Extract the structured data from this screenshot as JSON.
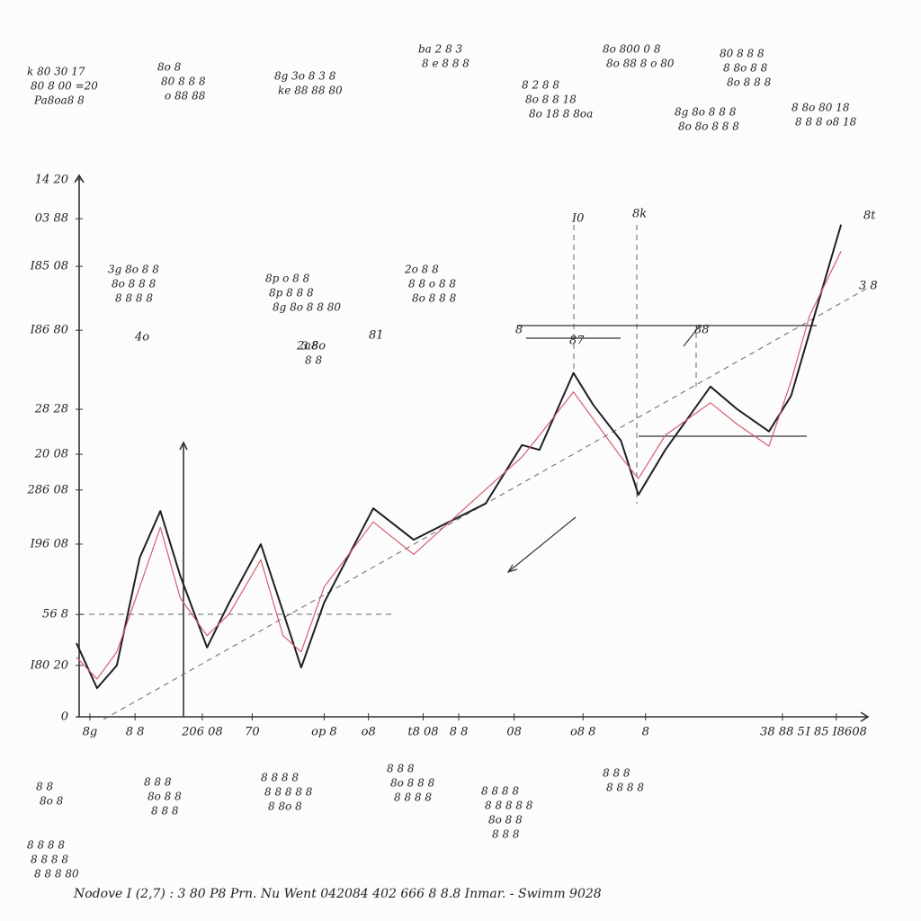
{
  "chart_data": {
    "type": "line",
    "xlim": [
      0,
      100
    ],
    "ylim": [
      0,
      100
    ],
    "x": [
      0,
      2.6,
      5.1,
      8,
      10.6,
      13.1,
      16.5,
      19.3,
      23.3,
      26.1,
      28.4,
      31.3,
      37.5,
      42.6,
      51.7,
      56.3,
      58.5,
      62.8,
      65.3,
      68.8,
      71,
      74.4,
      80.1,
      83.5,
      87.5,
      90.3,
      92.6,
      96.6
    ],
    "series": [
      {
        "color": "#1f1f24",
        "values": [
          13.6,
          5.3,
          9.5,
          29.4,
          38,
          26.1,
          12.8,
          21.1,
          31.9,
          19.4,
          9.1,
          21.1,
          38.5,
          32.7,
          39.4,
          50.2,
          49.3,
          63.5,
          57.6,
          51,
          41,
          49.3,
          61,
          56.8,
          52.7,
          59.3,
          70.9,
          90.9
        ]
      },
      {
        "color": "#d4606e",
        "values": [
          11,
          7,
          12,
          24,
          35,
          22,
          15,
          19,
          29,
          15,
          12,
          24,
          36,
          30,
          42,
          48,
          52,
          60,
          55,
          48,
          44,
          52,
          58,
          54,
          50,
          62,
          74,
          86
        ]
      }
    ],
    "xticks": [
      {
        "value": 1.7,
        "label": "8g"
      },
      {
        "value": 7.4,
        "label": "8 8"
      },
      {
        "value": 15.9,
        "label": "206 08"
      },
      {
        "value": 22.2,
        "label": "70"
      },
      {
        "value": 31.3,
        "label": "op 8"
      },
      {
        "value": 36.9,
        "label": "o8"
      },
      {
        "value": 43.8,
        "label": "t8 08"
      },
      {
        "value": 48.3,
        "label": "8 8"
      },
      {
        "value": 55.3,
        "label": "08"
      },
      {
        "value": 64,
        "label": "o8 8"
      },
      {
        "value": 71.9,
        "label": "8"
      },
      {
        "value": 89.2,
        "label": "38 88 5"
      },
      {
        "value": 96,
        "label": "I 85 I8608"
      }
    ],
    "yticks": [
      0,
      {
        "value": 9.5,
        "label": "I80 20"
      },
      {
        "value": 18.9,
        "label": "56 8"
      },
      {
        "value": 31.9,
        "label": "I96 08"
      },
      {
        "value": 41.9,
        "label": "286 08"
      },
      {
        "value": 48.5,
        "label": "20 08"
      },
      {
        "value": 56.8,
        "label": "28 28"
      },
      {
        "value": 71.4,
        "label": "I86 80"
      },
      {
        "value": 83.2,
        "label": "I85 08"
      },
      {
        "value": 92,
        "label": "03 88"
      },
      {
        "value": 99.2,
        "label": "14 20"
      }
    ],
    "notes": [
      [
        "k 80 30 17",
        "80 8 00 =20",
        "Pa8oa8 8"
      ],
      [
        "8o 8",
        "80 8 8 8",
        "o 88 88"
      ],
      [
        "8g 3o 8 3 8",
        "ke 88 88 80"
      ],
      [
        "ba 2 8 3",
        "8 e 8 8 8"
      ],
      [
        "8 2 8 8",
        "8o 8 8 18",
        "8o 18 8 8oa"
      ],
      [
        "8o 800 0 8",
        "8o 88 8 o 80"
      ],
      [
        "80 8 8 8",
        "8 8o 8 8",
        "8o 8 8 8"
      ],
      [
        "8g 8o 8 8 8",
        "8o 8o 8 8 8"
      ],
      [
        "8 8o 80 18",
        "8 8 8 o8 18"
      ],
      [
        "3g 8o 8 8",
        "8o 8 8 8",
        "8 8 8 8"
      ],
      [
        "8p o 8 8",
        "8p 8 8 8",
        "8g 8o 8 8 80"
      ],
      [
        "2o 8 8",
        "8 8 o 8 8",
        "8o 8 8 8"
      ],
      [
        "3 8",
        "8 8"
      ],
      [
        "8 8",
        "8o 8"
      ],
      [
        "8 8 8",
        "8o 8 8",
        "8 8 8"
      ],
      [
        "8 8 8 8",
        "8 8 8 8 8",
        "8 8o 8"
      ],
      [
        "8 8 8",
        "8o 8 8 8",
        "8 8 8 8"
      ],
      [
        "8 8 8 8",
        "8 8 8 8 8",
        "8o 8 8",
        "8 8 8"
      ],
      [
        "8 8 8",
        "8 8 8 8"
      ],
      [
        "8 8 8 8",
        "8 8 8 8",
        "8 8 8 80"
      ]
    ],
    "labels": [
      "I0",
      "8k",
      "8",
      "87",
      "88",
      "8t",
      "3 8",
      "81",
      "4o",
      "2a8o"
    ],
    "footer": "Nodove I (2,7) : 3 80 P8 Prn. Nu Went 042084 402 666 8 8.8 Inmar. - Swimm 9028"
  }
}
